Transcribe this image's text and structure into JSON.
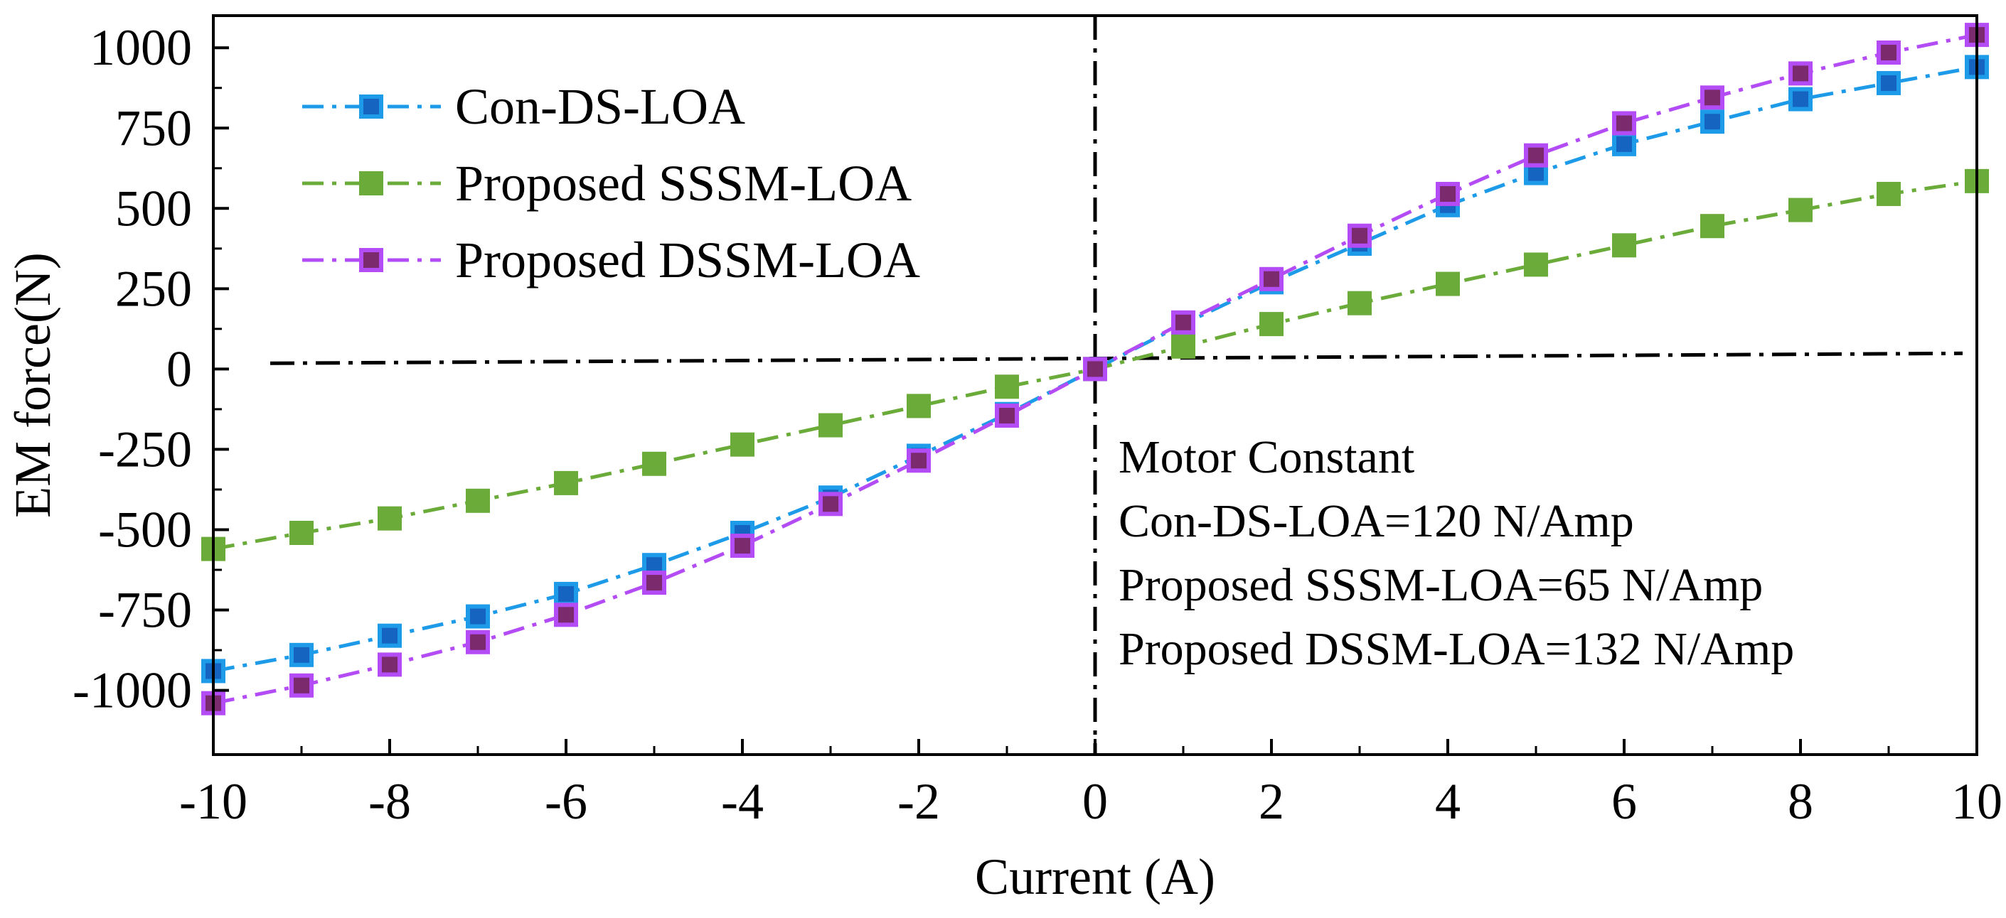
{
  "chart_data": {
    "type": "line",
    "title": "",
    "xlabel": "Current (A)",
    "ylabel": "EM force(N)",
    "xlim": [
      -10,
      10
    ],
    "ylim": [
      -1200,
      1100
    ],
    "xticks": [
      -10,
      -8,
      -6,
      -4,
      -2,
      0,
      2,
      4,
      6,
      8,
      10
    ],
    "xtick_labels": [
      "-10",
      "-8",
      "-6",
      "-4",
      "-2",
      "0",
      "2",
      "4",
      "6",
      "8",
      "10"
    ],
    "yticks": [
      -1000,
      -750,
      -500,
      -250,
      0,
      250,
      500,
      750,
      1000
    ],
    "ytick_labels": [
      "-1000",
      "-750",
      "-500",
      "-250",
      "0",
      "250",
      "500",
      "750",
      "1000"
    ],
    "grid": false,
    "legend_position": "top-left",
    "x": [
      -10,
      -9,
      -8,
      -7,
      -6,
      -5,
      -4,
      -3,
      -2,
      -1,
      0,
      1,
      2,
      3,
      4,
      5,
      6,
      7,
      8,
      9,
      10
    ],
    "series": [
      {
        "name": "Con-DS-LOA",
        "color": "#1E9BE8",
        "marker_fill": "#1565C0",
        "values": [
          -940,
          -890,
          -830,
          -770,
          -700,
          -610,
          -510,
          -400,
          -270,
          -140,
          0,
          140,
          270,
          390,
          510,
          610,
          700,
          770,
          840,
          890,
          940
        ]
      },
      {
        "name": "Proposed SSSM-LOA",
        "color": "#6AAB3A",
        "marker_fill": "#6AAB3A",
        "values": [
          -560,
          -510,
          -465,
          -410,
          -355,
          -295,
          -235,
          -175,
          -115,
          -55,
          0,
          70,
          140,
          205,
          265,
          325,
          385,
          445,
          495,
          545,
          585
        ]
      },
      {
        "name": "Proposed DSSM-LOA",
        "color": "#B44CF5",
        "marker_fill": "#7B2A6E",
        "values": [
          -1040,
          -985,
          -920,
          -850,
          -765,
          -665,
          -550,
          -420,
          -285,
          -145,
          0,
          145,
          280,
          415,
          545,
          665,
          765,
          845,
          920,
          985,
          1040
        ]
      }
    ],
    "reference_lines": {
      "horizontal_at_y": 40,
      "vertical_at_x": 0,
      "style": "dash-dot",
      "color": "#000000"
    },
    "annotation": {
      "heading": "Motor Constant",
      "lines": [
        "Con-DS-LOA=120 N/Amp",
        "Proposed SSSM-LOA=65 N/Amp",
        "Proposed DSSM-LOA=132 N/Amp"
      ]
    }
  }
}
